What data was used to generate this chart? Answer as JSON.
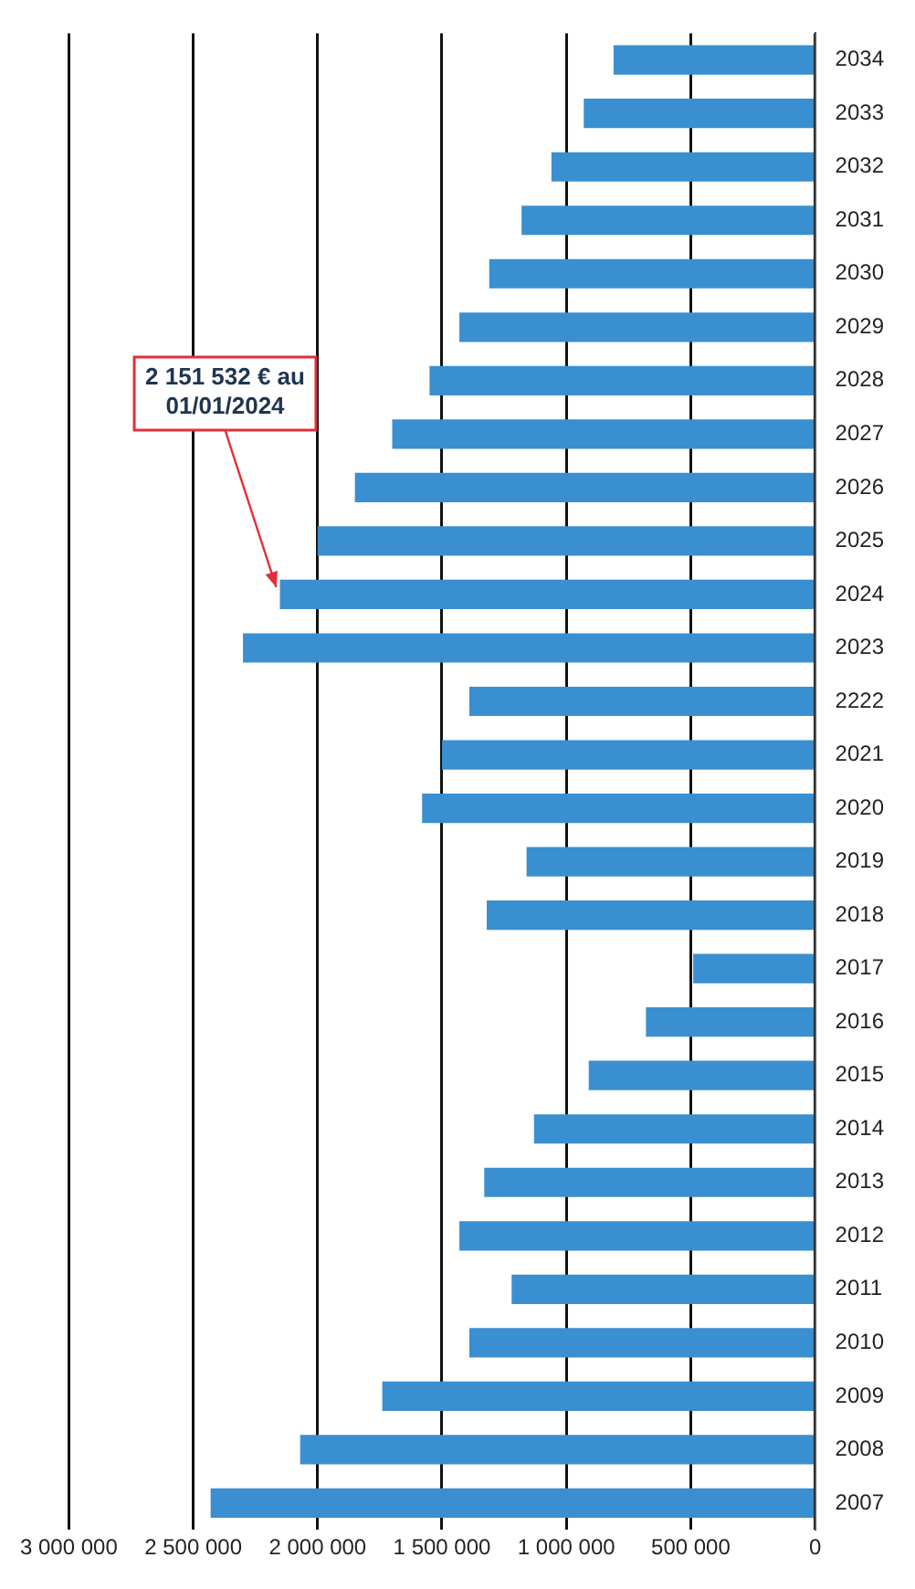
{
  "chart_data": {
    "type": "bar",
    "orientation": "horizontal",
    "categories": [
      "2034",
      "2033",
      "2032",
      "2031",
      "2030",
      "2029",
      "2028",
      "2027",
      "2026",
      "2025",
      "2024",
      "2023",
      "2222",
      "2021",
      "2020",
      "2019",
      "2018",
      "2017",
      "2016",
      "2015",
      "2014",
      "2013",
      "2012",
      "2011",
      "2010",
      "2009",
      "2008",
      "2007"
    ],
    "values": [
      810000,
      930000,
      1060000,
      1180000,
      1310000,
      1430000,
      1550000,
      1700000,
      1850000,
      2000000,
      2151532,
      2300000,
      1390000,
      1500000,
      1580000,
      1160000,
      1320000,
      490000,
      680000,
      910000,
      1130000,
      1330000,
      1430000,
      1220000,
      1390000,
      1740000,
      2070000,
      2430000
    ],
    "color": "#3a8fd0",
    "xlim": [
      3000000,
      0
    ],
    "xticks": [
      {
        "value": 3000000,
        "label": "3 000 000"
      },
      {
        "value": 2500000,
        "label": "2 500 000"
      },
      {
        "value": 2000000,
        "label": "2 000 000"
      },
      {
        "value": 1500000,
        "label": "1 500 000"
      },
      {
        "value": 1000000,
        "label": "1 000 000"
      },
      {
        "value": 500000,
        "label": "500 000"
      },
      0
    ],
    "grid": "x",
    "legend": false,
    "annotations": [
      {
        "text": "2 151 532 € au\n01/01/2024",
        "x": 2151532,
        "y": "2024"
      }
    ]
  }
}
